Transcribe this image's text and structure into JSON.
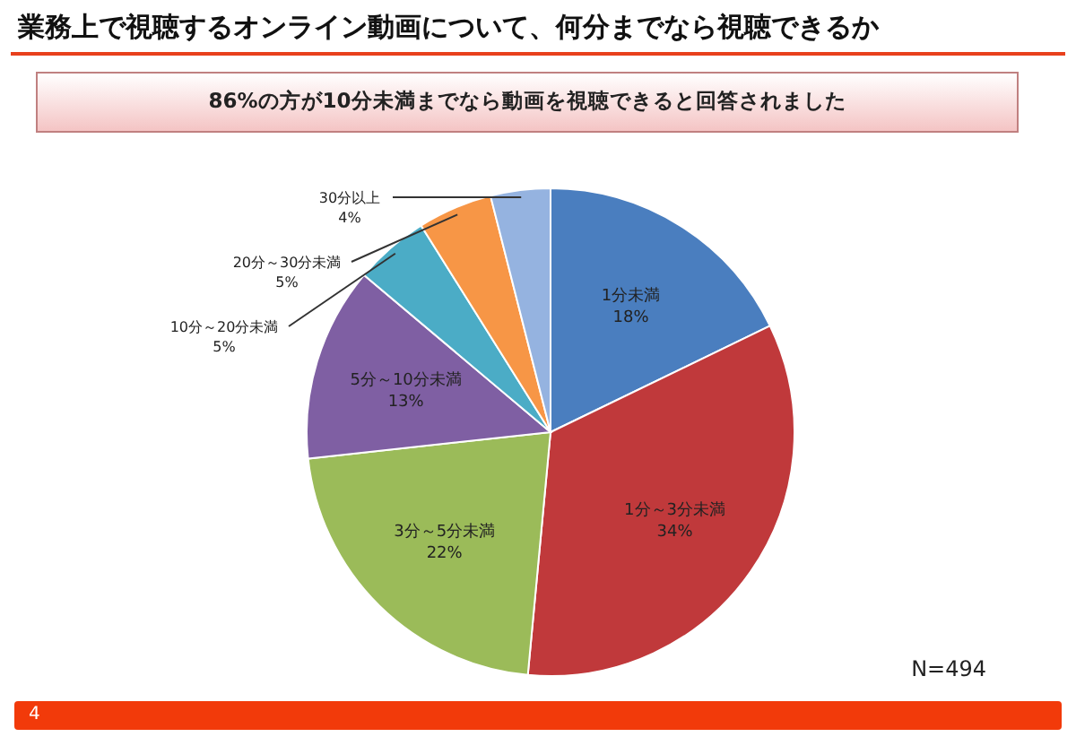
{
  "chart_data": {
    "type": "pie",
    "title": "業務上で視聴するオンライン動画について、何分までなら視聴できるか",
    "subtitle": "86%の方が10分未満までなら動画を視聴できると回答されました",
    "categories": [
      "1分未満",
      "1分～3分未満",
      "3分～5分未満",
      "5分～10分未満",
      "10分～20分未満",
      "20分～30分未満",
      "30分以上"
    ],
    "values": [
      18,
      34,
      22,
      13,
      5,
      5,
      4
    ],
    "colors": [
      "#4a7ebf",
      "#c0393b",
      "#9bbb59",
      "#7f5fa3",
      "#4bacc6",
      "#f79646",
      "#95b3e0"
    ],
    "value_labels": [
      "18%",
      "34%",
      "22%",
      "13%",
      "5%",
      "5%",
      "4%"
    ],
    "annotations": [
      "N=494",
      "4"
    ]
  }
}
